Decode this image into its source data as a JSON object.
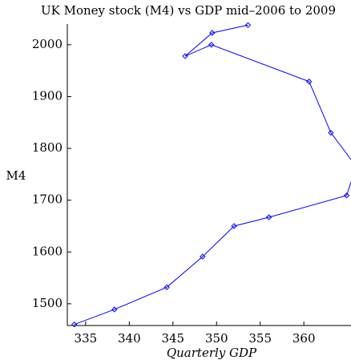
{
  "chart_data": {
    "type": "line",
    "title": "UK Money stock (M4) vs GDP mid–2006 to 2009",
    "xlabel": "Quarterly  GDP",
    "ylabel": "M4",
    "color": "#0000ff",
    "x": [
      333.7,
      338.3,
      344.3,
      348.4,
      352.0,
      356.0,
      364.9,
      366.0,
      363.1,
      360.6,
      349.4,
      346.4,
      349.5,
      353.6
    ],
    "values": [
      1460,
      1489,
      1532,
      1591,
      1650,
      1667,
      1709,
      1765,
      1830,
      1929,
      2000,
      1978,
      2023,
      2038
    ],
    "xlim": [
      332.9,
      365.4
    ],
    "ylim": [
      1458,
      2040
    ],
    "xticks": [
      335,
      340,
      345,
      350,
      355,
      360
    ],
    "yticks": [
      1500,
      1600,
      1700,
      1800,
      1900,
      2000
    ]
  }
}
